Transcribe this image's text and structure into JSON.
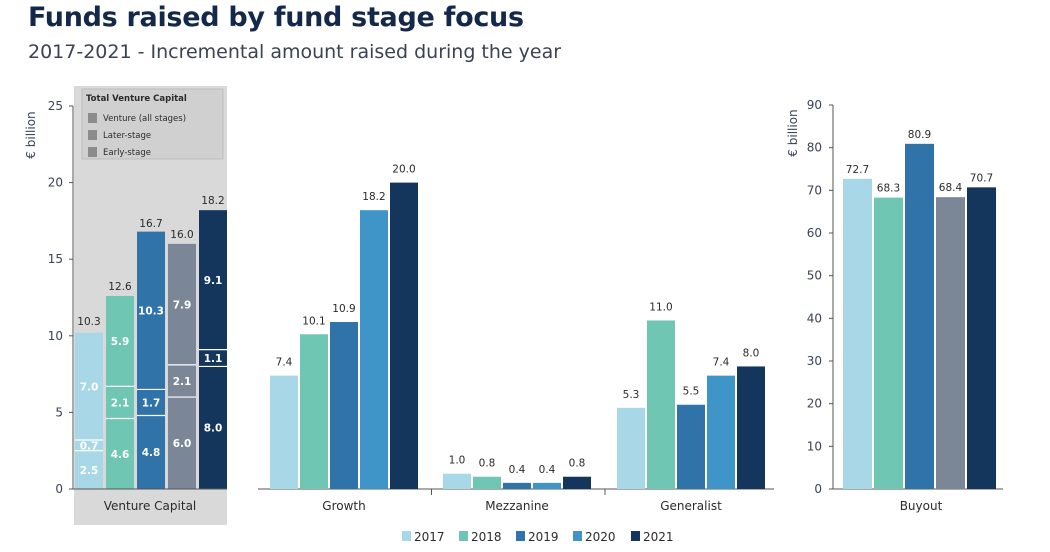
{
  "title": "Funds raised by fund stage focus",
  "subtitle": "2017-2021 - Incremental amount raised during the year",
  "colors": {
    "2017": "#a8d8e8",
    "2018": "#6fc7b3",
    "2019": "#2f73a8",
    "2020": "#3f95c7",
    "2021": "#14365c",
    "vc_2020": "#7b8797",
    "vc_panel": "#d9d9d9",
    "axis": "#555555"
  },
  "legend": [
    "2017",
    "2018",
    "2019",
    "2020",
    "2021"
  ],
  "chart_data": [
    {
      "type": "bar",
      "stacked": true,
      "ylabel": "€ billion",
      "ylim": [
        0,
        25
      ],
      "yticks": [
        "0",
        "5",
        "10",
        "15",
        "20",
        "25"
      ],
      "categories": [
        "Venture Capital"
      ],
      "box_title": "Total Venture Capital",
      "box_items": [
        "Venture (all stages)",
        "Later-stage",
        "Early-stage"
      ],
      "x": [
        "2017",
        "2018",
        "2019",
        "2020",
        "2021"
      ],
      "series": [
        {
          "name": "Early-stage",
          "values": [
            2.5,
            4.6,
            4.8,
            6.0,
            8.0
          ]
        },
        {
          "name": "Later-stage",
          "values": [
            0.7,
            2.1,
            1.7,
            2.1,
            1.1
          ]
        },
        {
          "name": "Venture (all stages)",
          "values": [
            7.0,
            5.9,
            10.3,
            7.9,
            9.1
          ]
        }
      ],
      "totals": [
        10.3,
        12.6,
        16.7,
        16.0,
        18.2
      ]
    },
    {
      "type": "bar",
      "ylim": [
        0,
        25
      ],
      "categories": [
        "Growth",
        "Mezzanine",
        "Generalist"
      ],
      "series": [
        {
          "name": "2017",
          "values": [
            7.4,
            1.0,
            5.3
          ]
        },
        {
          "name": "2018",
          "values": [
            10.1,
            0.8,
            11.0
          ]
        },
        {
          "name": "2019",
          "values": [
            10.9,
            0.4,
            5.5
          ]
        },
        {
          "name": "2020",
          "values": [
            18.2,
            0.4,
            7.4
          ]
        },
        {
          "name": "2021",
          "values": [
            20.0,
            0.8,
            8.0
          ]
        }
      ]
    },
    {
      "type": "bar",
      "ylabel": "€ billion",
      "ylim": [
        0,
        90
      ],
      "yticks": [
        "0",
        "10",
        "20",
        "30",
        "40",
        "50",
        "60",
        "70",
        "80",
        "90"
      ],
      "categories": [
        "Buyout"
      ],
      "series": [
        {
          "name": "2017",
          "values": [
            72.7
          ]
        },
        {
          "name": "2018",
          "values": [
            68.3
          ]
        },
        {
          "name": "2019",
          "values": [
            80.9
          ]
        },
        {
          "name": "2020",
          "values": [
            68.4
          ]
        },
        {
          "name": "2021",
          "values": [
            70.7
          ]
        }
      ]
    }
  ]
}
